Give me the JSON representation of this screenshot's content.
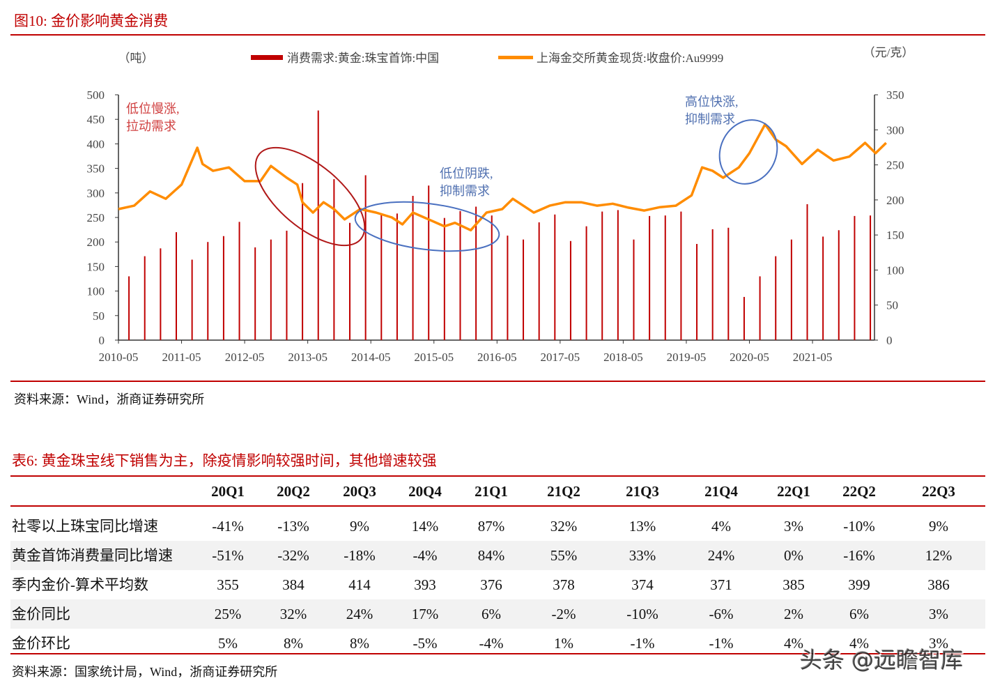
{
  "figure": {
    "title": "图10:   金价影响黄金消费",
    "source": "资料来源：Wind，浙商证券研究所"
  },
  "chart_data": {
    "type": "bar+line",
    "left_unit": "（吨）",
    "right_unit": "（元/克）",
    "legend_position": "top",
    "legend": [
      "消费需求:黄金:珠宝首饰:中国",
      "上海金交所黄金现货:收盘价:Au9999"
    ],
    "colors": {
      "bars": "#c00000",
      "line": "#ff8c00"
    },
    "left_axis": {
      "min": 0,
      "max": 500,
      "ticks": [
        "0",
        "50",
        "100",
        "150",
        "200",
        "250",
        "300",
        "350",
        "400",
        "450",
        "500"
      ]
    },
    "right_axis": {
      "min": 0,
      "max": 350,
      "ticks": [
        "0",
        "50",
        "100",
        "150",
        "200",
        "250",
        "300",
        "350"
      ]
    },
    "x_ticks": [
      "2010-05",
      "2011-05",
      "2012-05",
      "2013-05",
      "2014-05",
      "2015-05",
      "2016-05",
      "2017-05",
      "2018-05",
      "2019-05",
      "2020-05",
      "2021-05"
    ],
    "series": [
      {
        "name": "消费需求:黄金:珠宝首饰:中国",
        "type": "bar",
        "x": [
          "2010-07",
          "2010-10",
          "2011-01",
          "2011-04",
          "2011-07",
          "2011-10",
          "2012-01",
          "2012-04",
          "2012-07",
          "2012-10",
          "2013-01",
          "2013-04",
          "2013-07",
          "2013-10",
          "2014-01",
          "2014-04",
          "2014-07",
          "2014-10",
          "2015-01",
          "2015-04",
          "2015-07",
          "2015-10",
          "2016-01",
          "2016-04",
          "2016-07",
          "2016-10",
          "2017-01",
          "2017-04",
          "2017-07",
          "2017-10",
          "2018-01",
          "2018-04",
          "2018-07",
          "2018-10",
          "2019-01",
          "2019-04",
          "2019-07",
          "2019-10",
          "2020-01",
          "2020-04",
          "2020-07",
          "2020-10",
          "2021-01",
          "2021-04",
          "2021-07",
          "2021-10",
          "2022-01",
          "2022-04"
        ],
        "values": [
          130,
          171,
          187,
          220,
          164,
          200,
          212,
          241,
          189,
          205,
          223,
          320,
          468,
          328,
          239,
          336,
          258,
          258,
          294,
          315,
          249,
          263,
          272,
          254,
          213,
          205,
          240,
          256,
          202,
          232,
          262,
          265,
          205,
          253,
          254,
          262,
          196,
          226,
          229,
          88,
          130,
          171,
          205,
          277,
          211,
          224,
          253,
          254
        ]
      },
      {
        "name": "上海金交所黄金现货:收盘价:Au9999",
        "type": "line",
        "x": [
          "2010-05",
          "2010-08",
          "2010-11",
          "2011-02",
          "2011-05",
          "2011-08",
          "2011-09",
          "2011-11",
          "2012-02",
          "2012-05",
          "2012-08",
          "2012-10",
          "2013-01",
          "2013-03",
          "2013-04",
          "2013-06",
          "2013-08",
          "2013-10",
          "2013-12",
          "2014-03",
          "2014-06",
          "2014-09",
          "2014-11",
          "2015-01",
          "2015-04",
          "2015-07",
          "2015-09",
          "2015-12",
          "2016-03",
          "2016-06",
          "2016-08",
          "2016-12",
          "2017-03",
          "2017-06",
          "2017-09",
          "2017-12",
          "2018-03",
          "2018-06",
          "2018-09",
          "2018-12",
          "2019-03",
          "2019-06",
          "2019-08",
          "2019-10",
          "2019-12",
          "2020-03",
          "2020-05",
          "2020-08",
          "2020-10",
          "2020-12",
          "2021-03",
          "2021-06",
          "2021-09",
          "2021-12",
          "2022-03",
          "2022-05",
          "2022-07"
        ],
        "values": [
          267,
          274,
          303,
          288,
          317,
          392,
          359,
          345,
          352,
          324,
          324,
          355,
          331,
          317,
          281,
          260,
          281,
          267,
          246,
          267,
          260,
          250,
          236,
          260,
          246,
          232,
          239,
          224,
          260,
          267,
          288,
          260,
          274,
          281,
          281,
          274,
          278,
          270,
          264,
          271,
          274,
          295,
          352,
          345,
          331,
          352,
          381,
          440,
          409,
          395,
          359,
          388,
          366,
          374,
          402,
          381,
          402
        ]
      }
    ],
    "annotations": [
      {
        "text": [
          "低位慢涨,",
          "拉动需求"
        ],
        "color": "#d04040"
      },
      {
        "text": [
          "低位阴跌,",
          "抑制需求"
        ],
        "color": "#5070b0"
      },
      {
        "text": [
          "高位快涨,",
          "抑制需求"
        ],
        "color": "#5070b0"
      }
    ]
  },
  "table": {
    "title": "表6:   黄金珠宝线下销售为主，除疫情影响较强时间，其他增速较强",
    "columns": [
      "20Q1",
      "20Q2",
      "20Q3",
      "20Q4",
      "21Q1",
      "21Q2",
      "21Q3",
      "21Q4",
      "22Q1",
      "22Q2",
      "22Q3"
    ],
    "rows": [
      {
        "label": "社零以上珠宝同比增速",
        "values": [
          "-41%",
          "-13%",
          "9%",
          "14%",
          "87%",
          "32%",
          "13%",
          "4%",
          "3%",
          "-10%",
          "9%"
        ]
      },
      {
        "label": "黄金首饰消费量同比增速",
        "values": [
          "-51%",
          "-32%",
          "-18%",
          "-4%",
          "84%",
          "55%",
          "33%",
          "24%",
          "0%",
          "-16%",
          "12%"
        ]
      },
      {
        "label": "季内金价-算术平均数",
        "values": [
          "355",
          "384",
          "414",
          "393",
          "376",
          "378",
          "374",
          "371",
          "385",
          "399",
          "386"
        ]
      },
      {
        "label": "金价同比",
        "values": [
          "25%",
          "32%",
          "24%",
          "17%",
          "6%",
          "-2%",
          "-10%",
          "-6%",
          "2%",
          "6%",
          "3%"
        ]
      },
      {
        "label": "金价环比",
        "values": [
          "5%",
          "8%",
          "8%",
          "-5%",
          "-4%",
          "1%",
          "-1%",
          "-1%",
          "4%",
          "4%",
          "3%"
        ]
      }
    ],
    "source": "资料来源：国家统计局，Wind，浙商证券研究所"
  },
  "watermark": "头条 @远瞻智库"
}
